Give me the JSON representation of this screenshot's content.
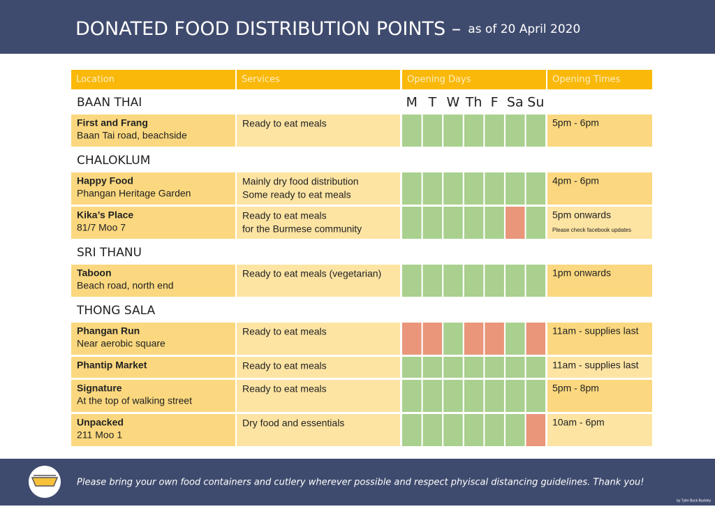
{
  "header": {
    "title": "DONATED FOOD DISTRIBUTION POINTS –",
    "date": "as of 20 April 2020"
  },
  "table": {
    "columns": [
      "Location",
      "Services",
      "Opening Days",
      "Opening Times"
    ],
    "day_labels": [
      "M",
      "T",
      "W",
      "Th",
      "F",
      "Sa",
      "Su"
    ],
    "sections": [
      {
        "name": "BAAN THAI",
        "rows": [
          {
            "name": "First and Frang",
            "address": "Baan Tai road, beachside",
            "services": [
              "Ready to eat meals"
            ],
            "open_days": [
              true,
              true,
              true,
              true,
              true,
              true,
              true
            ],
            "times": "5pm - 6pm"
          }
        ]
      },
      {
        "name": "CHALOKLUM",
        "rows": [
          {
            "name": "Happy Food",
            "address": "Phangan Heritage Garden",
            "services": [
              "Mainly dry food distribution",
              "Some ready to eat meals"
            ],
            "open_days": [
              true,
              true,
              true,
              true,
              true,
              true,
              true
            ],
            "times": "4pm - 6pm"
          },
          {
            "name": "Kika’s Place",
            "address": "81/7 Moo 7",
            "services": [
              "Ready to eat meals",
              "for the Burmese community"
            ],
            "open_days": [
              true,
              true,
              true,
              true,
              true,
              false,
              true
            ],
            "times": "5pm onwards",
            "note": "Please check facebook updates"
          }
        ]
      },
      {
        "name": "SRI THANU",
        "rows": [
          {
            "name": "Taboon",
            "address": "Beach road, north end",
            "services": [
              "Ready to eat meals (vegetarian)"
            ],
            "open_days": [
              true,
              true,
              true,
              true,
              true,
              true,
              true
            ],
            "times": "1pm onwards"
          }
        ]
      },
      {
        "name": "THONG SALA",
        "rows": [
          {
            "name": "Phangan Run",
            "address": "Near aerobic square",
            "services": [
              "Ready to eat meals"
            ],
            "open_days": [
              false,
              false,
              true,
              false,
              false,
              true,
              false
            ],
            "times": "11am - supplies last"
          },
          {
            "name": "Phantip Market",
            "services": [
              "Ready to eat meals"
            ],
            "open_days": [
              true,
              true,
              true,
              true,
              true,
              true,
              true
            ],
            "times": "11am - supplies last"
          },
          {
            "name": "Signature",
            "address": "At the top of walking street",
            "services": [
              "Ready to eat meals"
            ],
            "open_days": [
              true,
              true,
              true,
              true,
              true,
              true,
              true
            ],
            "times": "5pm - 8pm"
          },
          {
            "name": "Unpacked",
            "address": "211 Moo 1",
            "services": [
              "Dry food and essentials"
            ],
            "open_days": [
              true,
              true,
              true,
              true,
              true,
              true,
              false
            ],
            "times": "10am - 6pm"
          }
        ]
      }
    ]
  },
  "footer": {
    "message": "Please bring your own food containers and cutlery wherever possible and respect phyiscal distancing guidelines. Thank you!",
    "credit": "by Tyler Buck Buckley"
  }
}
